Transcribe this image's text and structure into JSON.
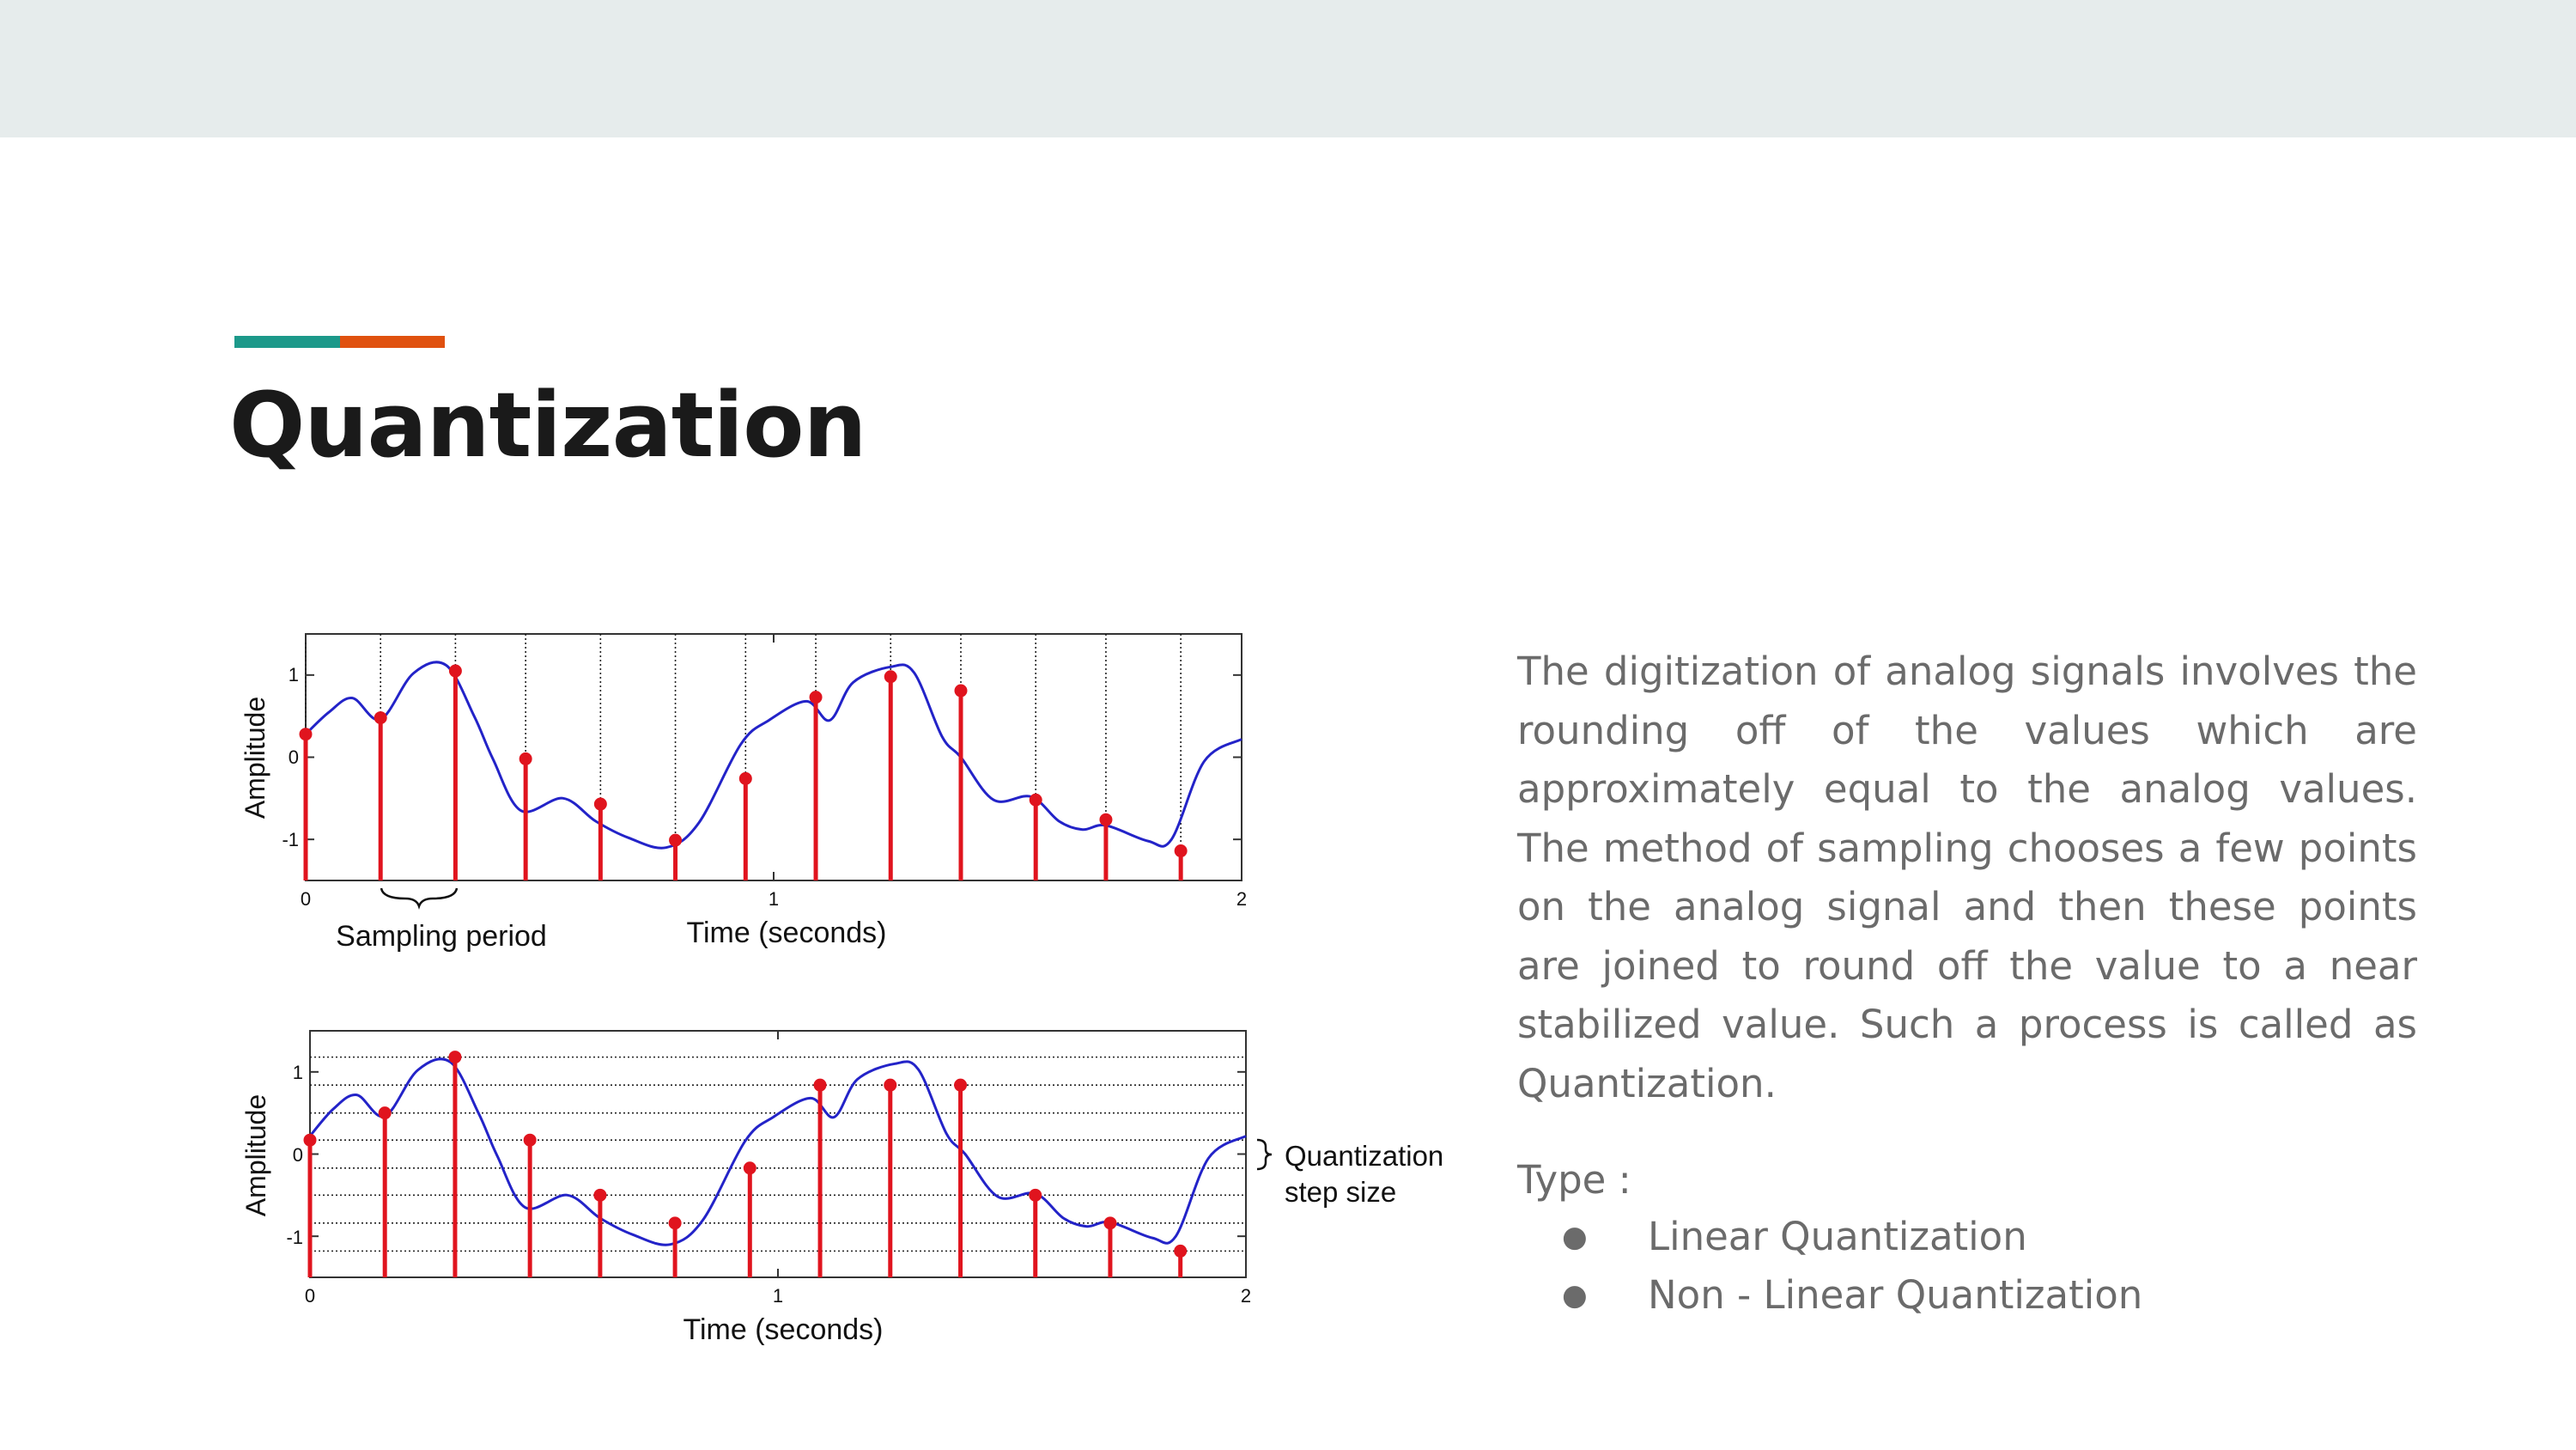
{
  "slide": {
    "title": "Quantization",
    "body": "The digitization of analog signals involves the rounding off of the values which are approximately equal to the analog values. The method of sampling chooses a few points on the analog signal and then these points are joined to round off the value to a near stabilized value. Such a process is called as Quantization.",
    "type_label": "Type :",
    "types": [
      "Linear Quantization",
      "Non - Linear Quantization"
    ],
    "bullet_icon": "bullet-dot-icon",
    "colors": {
      "accent_teal": "#1c998a",
      "accent_orange": "#e0510f",
      "title": "#1a1a1a",
      "body": "#6b6b6b",
      "band": "#e6ecec"
    }
  },
  "chart_data": [
    {
      "type": "line",
      "ylabel": "Amplitude",
      "xlabel": "Time (seconds)",
      "xlim": [
        0,
        2
      ],
      "ylim": [
        -1.5,
        1.5
      ],
      "xticks": [
        "0",
        "1",
        "2"
      ],
      "yticks": [
        "1",
        "0",
        "-1"
      ],
      "annotations": [
        "Sampling period"
      ],
      "grid": "vertical dotted lines at sample times",
      "colors": {
        "signal": "#2323c8",
        "samples": "#e0141e"
      },
      "curve": {
        "x": [
          0,
          0.05,
          0.1,
          0.16,
          0.23,
          0.3,
          0.36,
          0.4,
          0.46,
          0.55,
          0.62,
          0.69,
          0.77,
          0.84,
          0.93,
          0.99,
          1.07,
          1.12,
          1.17,
          1.25,
          1.3,
          1.36,
          1.4,
          1.47,
          1.55,
          1.61,
          1.66,
          1.71,
          1.8,
          1.85,
          1.92,
          2.0
        ],
        "y": [
          0.28,
          0.55,
          0.72,
          0.46,
          1.02,
          1.12,
          0.5,
          -0.02,
          -0.65,
          -0.5,
          -0.78,
          -0.98,
          -1.1,
          -0.8,
          0.16,
          0.45,
          0.68,
          0.45,
          0.91,
          1.1,
          1.03,
          0.25,
          0.0,
          -0.52,
          -0.48,
          -0.78,
          -0.88,
          -0.83,
          -1.02,
          -1.0,
          -0.05,
          0.22
        ]
      },
      "samples": {
        "x": [
          0,
          0.16,
          0.32,
          0.47,
          0.63,
          0.79,
          0.94,
          1.09,
          1.25,
          1.4,
          1.56,
          1.71,
          1.87
        ],
        "y": [
          0.28,
          0.48,
          1.05,
          -0.02,
          -0.57,
          -1.01,
          -0.26,
          0.73,
          0.98,
          0.81,
          -0.52,
          -0.76,
          -1.14
        ]
      }
    },
    {
      "type": "line",
      "ylabel": "Amplitude",
      "xlabel": "Time (seconds)",
      "xlim": [
        0,
        2
      ],
      "ylim": [
        -1.5,
        1.5
      ],
      "xticks": [
        "0",
        "1",
        "2"
      ],
      "yticks": [
        "1",
        "0",
        "-1"
      ],
      "annotations": [
        "Quantization",
        "step size"
      ],
      "grid": "horizontal dotted quantization levels",
      "quantization_levels": [
        1.18,
        0.84,
        0.5,
        0.17,
        -0.17,
        -0.5,
        -0.84,
        -1.18
      ],
      "colors": {
        "signal": "#2323c8",
        "samples": "#e0141e"
      },
      "curve": {
        "x": [
          0,
          0.05,
          0.1,
          0.16,
          0.23,
          0.3,
          0.36,
          0.4,
          0.46,
          0.55,
          0.62,
          0.69,
          0.77,
          0.84,
          0.93,
          0.99,
          1.07,
          1.12,
          1.17,
          1.25,
          1.3,
          1.36,
          1.4,
          1.47,
          1.55,
          1.61,
          1.66,
          1.71,
          1.8,
          1.85,
          1.92,
          2.0
        ],
        "y": [
          0.22,
          0.55,
          0.72,
          0.46,
          1.02,
          1.12,
          0.5,
          -0.02,
          -0.65,
          -0.5,
          -0.78,
          -0.98,
          -1.1,
          -0.8,
          0.16,
          0.45,
          0.68,
          0.45,
          0.91,
          1.1,
          1.03,
          0.25,
          0.0,
          -0.52,
          -0.48,
          -0.78,
          -0.88,
          -0.83,
          -1.02,
          -1.0,
          -0.05,
          0.22
        ]
      },
      "samples": {
        "x": [
          0,
          0.16,
          0.31,
          0.47,
          0.62,
          0.78,
          0.94,
          1.09,
          1.24,
          1.39,
          1.55,
          1.71,
          1.86
        ],
        "y": [
          0.17,
          0.5,
          1.18,
          0.17,
          -0.5,
          -0.84,
          -0.17,
          0.84,
          0.84,
          0.84,
          -0.5,
          -0.84,
          -1.18
        ]
      }
    }
  ]
}
